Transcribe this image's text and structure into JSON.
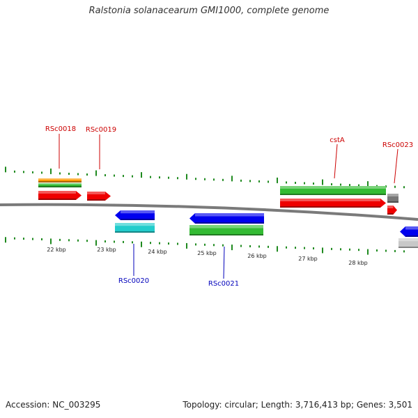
{
  "title": "Ralstonia solanacearum GMI1000, complete genome",
  "footer": {
    "accession": "Accession: NC_003295",
    "summary": "Topology: circular; Length: 3,716,413 bp; Genes: 3,501"
  },
  "colors": {
    "background": "#ffffff",
    "backbone": "#7a7a7a",
    "tick": "#1f8a1f",
    "forward_label": "#cc0000",
    "reverse_label": "#0000bb",
    "red": "#ee0000",
    "green": "#33bb33",
    "blue": "#0000ee",
    "cyan": "#22cccc",
    "orange": "#ff9900",
    "gray": "#777777",
    "lightgray": "#c8c8c8"
  },
  "scale_labels": [
    "22 kbp",
    "23 kbp",
    "24 kbp",
    "25 kbp",
    "26 kbp",
    "27 kbp",
    "28 kbp"
  ],
  "gene_labels": [
    {
      "text": "RSc0018",
      "strand": "forward"
    },
    {
      "text": "RSc0019",
      "strand": "forward"
    },
    {
      "text": "cstA",
      "strand": "forward"
    },
    {
      "text": "RSc0023",
      "strand": "forward"
    },
    {
      "text": "RSc0020",
      "strand": "reverse"
    },
    {
      "text": "RSc0021",
      "strand": "reverse"
    }
  ]
}
